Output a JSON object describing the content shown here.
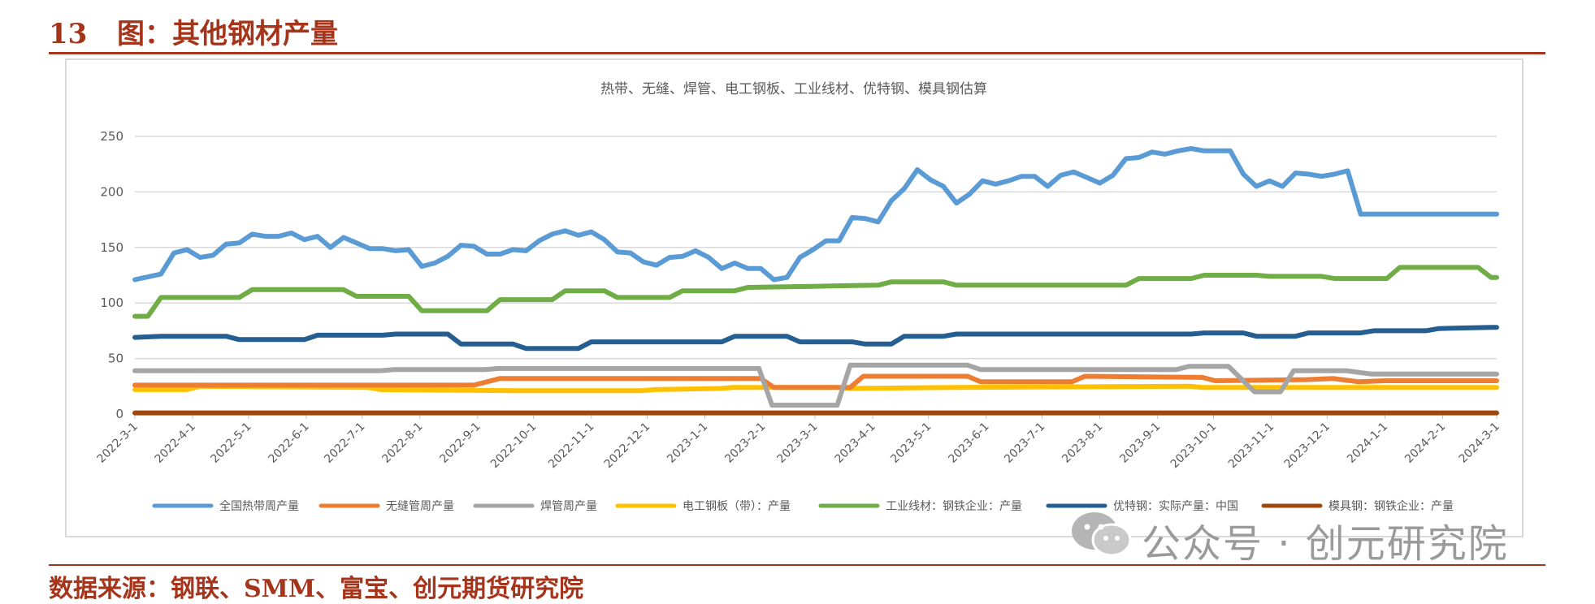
{
  "header": {
    "figure_number": "13",
    "figure_title": "图：其他钢材产量"
  },
  "footer": {
    "source": "数据来源：钢联、SMM、富宝、创元期货研究院"
  },
  "watermark": {
    "text": "公众号 · 创元研究院",
    "icon": "wechat-icon"
  },
  "chart_data": {
    "type": "line",
    "title": "热带、无缝、焊管、电工钢板、工业线材、优特钢、模具钢估算",
    "xlabel": "",
    "ylabel": "",
    "ylim": [
      0,
      250
    ],
    "yticks": [
      "0",
      "50",
      "100",
      "150",
      "200",
      "250"
    ],
    "grid": true,
    "legend": "bottom",
    "start": "2022-3-1",
    "x_ticks": [
      "2022-3-1",
      "2022-4-1",
      "2022-5-1",
      "2022-6-1",
      "2022-7-1",
      "2022-8-1",
      "2022-9-1",
      "2022-10-1",
      "2022-11-1",
      "2022-12-1",
      "2023-1-1",
      "2023-2-1",
      "2023-3-1",
      "2023-4-1",
      "2023-5-1",
      "2023-6-1",
      "2023-7-1",
      "2023-8-1",
      "2023-9-1",
      "2023-10-1",
      "2023-11-1",
      "2023-12-1",
      "2024-1-1",
      "2024-2-1",
      "2024-3-1"
    ],
    "series": [
      {
        "name": "全国热带周产量",
        "color": "#5b9bd5",
        "points": [
          [
            "2022-3-1",
            121
          ],
          [
            "2022-3-15",
            126
          ],
          [
            "2022-3-22",
            145
          ],
          [
            "2022-3-29",
            148
          ],
          [
            "2022-4-5",
            141
          ],
          [
            "2022-4-12",
            143
          ],
          [
            "2022-4-19",
            153
          ],
          [
            "2022-4-26",
            154
          ],
          [
            "2022-5-3",
            162
          ],
          [
            "2022-5-10",
            160
          ],
          [
            "2022-5-17",
            160
          ],
          [
            "2022-5-24",
            163
          ],
          [
            "2022-5-31",
            157
          ],
          [
            "2022-6-7",
            160
          ],
          [
            "2022-6-14",
            150
          ],
          [
            "2022-6-21",
            159
          ],
          [
            "2022-6-28",
            154
          ],
          [
            "2022-7-5",
            149
          ],
          [
            "2022-7-12",
            149
          ],
          [
            "2022-7-19",
            147
          ],
          [
            "2022-7-26",
            148
          ],
          [
            "2022-8-2",
            133
          ],
          [
            "2022-8-9",
            136
          ],
          [
            "2022-8-16",
            142
          ],
          [
            "2022-8-23",
            152
          ],
          [
            "2022-8-30",
            151
          ],
          [
            "2022-9-6",
            144
          ],
          [
            "2022-9-13",
            144
          ],
          [
            "2022-9-20",
            148
          ],
          [
            "2022-9-27",
            147
          ],
          [
            "2022-10-4",
            156
          ],
          [
            "2022-10-11",
            162
          ],
          [
            "2022-10-18",
            165
          ],
          [
            "2022-10-25",
            161
          ],
          [
            "2022-11-1",
            164
          ],
          [
            "2022-11-8",
            157
          ],
          [
            "2022-11-15",
            146
          ],
          [
            "2022-11-22",
            145
          ],
          [
            "2022-11-29",
            137
          ],
          [
            "2022-12-6",
            134
          ],
          [
            "2022-12-13",
            141
          ],
          [
            "2022-12-20",
            142
          ],
          [
            "2022-12-27",
            147
          ],
          [
            "2023-1-3",
            141
          ],
          [
            "2023-1-10",
            131
          ],
          [
            "2023-1-17",
            136
          ],
          [
            "2023-1-24",
            131
          ],
          [
            "2023-1-31",
            131
          ],
          [
            "2023-2-7",
            121
          ],
          [
            "2023-2-14",
            123
          ],
          [
            "2023-2-21",
            141
          ],
          [
            "2023-2-28",
            148
          ],
          [
            "2023-3-7",
            156
          ],
          [
            "2023-3-14",
            156
          ],
          [
            "2023-3-21",
            177
          ],
          [
            "2023-3-28",
            176
          ],
          [
            "2023-4-4",
            173
          ],
          [
            "2023-4-11",
            192
          ],
          [
            "2023-4-18",
            203
          ],
          [
            "2023-4-25",
            220
          ],
          [
            "2023-5-2",
            211
          ],
          [
            "2023-5-9",
            205
          ],
          [
            "2023-5-16",
            190
          ],
          [
            "2023-5-23",
            198
          ],
          [
            "2023-5-30",
            210
          ],
          [
            "2023-6-6",
            207
          ],
          [
            "2023-6-13",
            210
          ],
          [
            "2023-6-20",
            214
          ],
          [
            "2023-6-27",
            214
          ],
          [
            "2023-7-4",
            205
          ],
          [
            "2023-7-11",
            215
          ],
          [
            "2023-7-18",
            218
          ],
          [
            "2023-7-25",
            213
          ],
          [
            "2023-8-1",
            208
          ],
          [
            "2023-8-8",
            215
          ],
          [
            "2023-8-15",
            230
          ],
          [
            "2023-8-22",
            231
          ],
          [
            "2023-8-29",
            236
          ],
          [
            "2023-9-5",
            234
          ],
          [
            "2023-9-12",
            237
          ],
          [
            "2023-9-19",
            239
          ],
          [
            "2023-9-26",
            237
          ],
          [
            "2023-10-3",
            237
          ],
          [
            "2023-10-10",
            237
          ],
          [
            "2023-10-17",
            216
          ],
          [
            "2023-10-24",
            205
          ],
          [
            "2023-10-31",
            210
          ],
          [
            "2023-11-7",
            205
          ],
          [
            "2023-11-14",
            217
          ],
          [
            "2023-11-21",
            216
          ],
          [
            "2023-11-28",
            214
          ],
          [
            "2023-12-5",
            216
          ],
          [
            "2023-12-12",
            219
          ],
          [
            "2023-12-19",
            180
          ],
          [
            "2024-1-1",
            180
          ],
          [
            "2024-2-1",
            180
          ],
          [
            "2024-3-1",
            180
          ]
        ]
      },
      {
        "name": "无缝管周产量",
        "color": "#ed7d31",
        "points": [
          [
            "2022-3-1",
            26
          ],
          [
            "2022-8-30",
            26
          ],
          [
            "2022-9-13",
            32
          ],
          [
            "2023-1-31",
            32
          ],
          [
            "2023-2-7",
            24
          ],
          [
            "2023-3-20",
            24
          ],
          [
            "2023-3-27",
            34
          ],
          [
            "2023-5-22",
            34
          ],
          [
            "2023-5-29",
            29
          ],
          [
            "2023-7-17",
            29
          ],
          [
            "2023-7-24",
            34
          ],
          [
            "2023-9-25",
            33
          ],
          [
            "2023-10-2",
            30
          ],
          [
            "2023-11-20",
            31
          ],
          [
            "2023-12-4",
            32
          ],
          [
            "2023-12-18",
            29
          ],
          [
            "2024-1-1",
            30
          ],
          [
            "2024-3-1",
            30
          ]
        ]
      },
      {
        "name": "焊管周产量",
        "color": "#a5a5a5",
        "points": [
          [
            "2022-3-1",
            39
          ],
          [
            "2022-7-11",
            39
          ],
          [
            "2022-7-18",
            40
          ],
          [
            "2022-9-5",
            40
          ],
          [
            "2022-9-12",
            41
          ],
          [
            "2023-1-30",
            41
          ],
          [
            "2023-2-6",
            8
          ],
          [
            "2023-3-13",
            8
          ],
          [
            "2023-3-20",
            44
          ],
          [
            "2023-5-22",
            44
          ],
          [
            "2023-5-29",
            40
          ],
          [
            "2023-7-24",
            40
          ],
          [
            "2023-9-11",
            40
          ],
          [
            "2023-9-18",
            43
          ],
          [
            "2023-10-9",
            43
          ],
          [
            "2023-10-23",
            20
          ],
          [
            "2023-11-6",
            20
          ],
          [
            "2023-11-13",
            39
          ],
          [
            "2023-12-11",
            39
          ],
          [
            "2023-12-25",
            36
          ],
          [
            "2024-3-1",
            36
          ]
        ]
      },
      {
        "name": "电工钢板（带）：产量",
        "color": "#ffc000",
        "points": [
          [
            "2022-3-1",
            22
          ],
          [
            "2022-3-29",
            22
          ],
          [
            "2022-4-5",
            25
          ],
          [
            "2022-7-4",
            24
          ],
          [
            "2022-7-11",
            22
          ],
          [
            "2022-9-26",
            21
          ],
          [
            "2022-11-28",
            21
          ],
          [
            "2022-12-5",
            22
          ],
          [
            "2023-1-9",
            23
          ],
          [
            "2023-1-16",
            24
          ],
          [
            "2023-3-13",
            24
          ],
          [
            "2023-3-20",
            23
          ],
          [
            "2023-5-15",
            24
          ],
          [
            "2023-9-18",
            25
          ],
          [
            "2023-9-25",
            24
          ],
          [
            "2024-3-1",
            24
          ]
        ]
      },
      {
        "name": "工业线材：钢铁企业：产量",
        "color": "#70ad47",
        "points": [
          [
            "2022-3-1",
            88
          ],
          [
            "2022-3-8",
            88
          ],
          [
            "2022-3-15",
            105
          ],
          [
            "2022-4-26",
            105
          ],
          [
            "2022-5-3",
            112
          ],
          [
            "2022-6-21",
            112
          ],
          [
            "2022-6-28",
            106
          ],
          [
            "2022-7-26",
            106
          ],
          [
            "2022-8-2",
            93
          ],
          [
            "2022-9-6",
            93
          ],
          [
            "2022-9-13",
            103
          ],
          [
            "2022-10-11",
            103
          ],
          [
            "2022-10-18",
            111
          ],
          [
            "2022-11-8",
            111
          ],
          [
            "2022-11-15",
            105
          ],
          [
            "2022-12-13",
            105
          ],
          [
            "2022-12-20",
            111
          ],
          [
            "2023-1-17",
            111
          ],
          [
            "2023-1-24",
            114
          ],
          [
            "2023-2-28",
            115
          ],
          [
            "2023-4-4",
            116
          ],
          [
            "2023-4-11",
            119
          ],
          [
            "2023-5-9",
            119
          ],
          [
            "2023-5-16",
            116
          ],
          [
            "2023-8-15",
            116
          ],
          [
            "2023-8-22",
            122
          ],
          [
            "2023-9-19",
            122
          ],
          [
            "2023-9-26",
            125
          ],
          [
            "2023-10-24",
            125
          ],
          [
            "2023-10-31",
            124
          ],
          [
            "2023-11-28",
            124
          ],
          [
            "2023-12-5",
            122
          ],
          [
            "2024-1-2",
            122
          ],
          [
            "2024-1-9",
            132
          ],
          [
            "2024-2-20",
            132
          ],
          [
            "2024-2-27",
            123
          ],
          [
            "2024-3-1",
            123
          ]
        ]
      },
      {
        "name": "优特钢：实际产量：中国",
        "color": "#255e91",
        "points": [
          [
            "2022-3-1",
            69
          ],
          [
            "2022-3-15",
            70
          ],
          [
            "2022-4-19",
            70
          ],
          [
            "2022-4-26",
            67
          ],
          [
            "2022-5-31",
            67
          ],
          [
            "2022-6-7",
            71
          ],
          [
            "2022-7-12",
            71
          ],
          [
            "2022-7-19",
            72
          ],
          [
            "2022-8-16",
            72
          ],
          [
            "2022-8-23",
            63
          ],
          [
            "2022-9-20",
            63
          ],
          [
            "2022-9-27",
            59
          ],
          [
            "2022-10-25",
            59
          ],
          [
            "2022-11-1",
            65
          ],
          [
            "2023-1-10",
            65
          ],
          [
            "2023-1-17",
            70
          ],
          [
            "2023-2-14",
            70
          ],
          [
            "2023-2-21",
            65
          ],
          [
            "2023-3-21",
            65
          ],
          [
            "2023-3-28",
            63
          ],
          [
            "2023-4-11",
            63
          ],
          [
            "2023-4-18",
            70
          ],
          [
            "2023-5-9",
            70
          ],
          [
            "2023-5-16",
            72
          ],
          [
            "2023-9-19",
            72
          ],
          [
            "2023-9-26",
            73
          ],
          [
            "2023-10-17",
            73
          ],
          [
            "2023-10-24",
            70
          ],
          [
            "2023-11-14",
            70
          ],
          [
            "2023-11-21",
            73
          ],
          [
            "2023-12-19",
            73
          ],
          [
            "2023-12-26",
            75
          ],
          [
            "2024-1-23",
            75
          ],
          [
            "2024-1-30",
            77
          ],
          [
            "2024-2-27",
            78
          ],
          [
            "2024-3-1",
            78
          ]
        ]
      },
      {
        "name": "模具钢：钢铁企业：产量",
        "color": "#9e480e",
        "points": [
          [
            "2022-3-1",
            1
          ],
          [
            "2024-3-1",
            1
          ]
        ]
      }
    ]
  }
}
